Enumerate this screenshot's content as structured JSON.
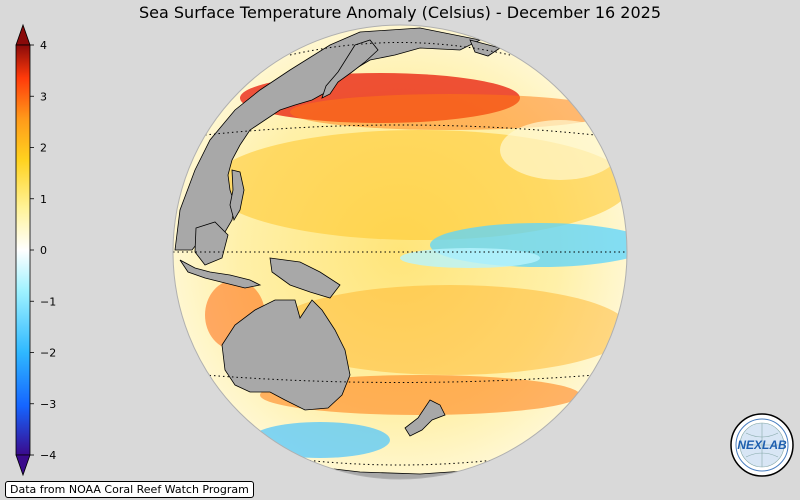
{
  "title": "Sea Surface Temperature Anomaly (Celsius) - December 16 2025",
  "colorbar": {
    "ticks": [
      "4",
      "3",
      "2",
      "1",
      "0",
      "−1",
      "−2",
      "−3",
      "−4"
    ],
    "min": -4,
    "max": 4,
    "colors": [
      "#3a0a8c",
      "#1565ff",
      "#2fb8ff",
      "#9ff2ff",
      "#ffffff",
      "#fff39a",
      "#ffd21f",
      "#ff9a1a",
      "#ff3a0a",
      "#8a0a0a"
    ]
  },
  "credit": "Data from NOAA Coral Reef Watch Program",
  "logo_text": "NEXLAB",
  "colors": {
    "background": "#d9d9d9",
    "land": "#a8a8a8",
    "ocean_base": "#fff4b0"
  }
}
